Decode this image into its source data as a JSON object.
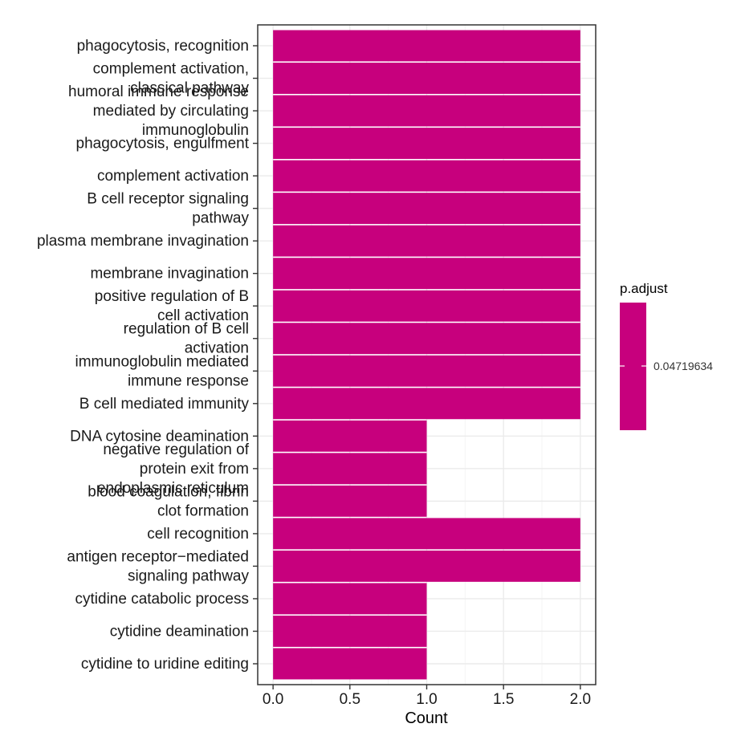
{
  "chart_data": {
    "type": "bar",
    "orientation": "horizontal",
    "categories": [
      "phagocytosis, recognition",
      "complement activation,\nclassical pathway",
      "humoral immune response\nmediated by circulating\nimmunoglobulin",
      "phagocytosis, engulfment",
      "complement activation",
      "B cell receptor signaling\npathway",
      "plasma membrane invagination",
      "membrane invagination",
      "positive regulation of B\ncell activation",
      "regulation of B cell\nactivation",
      "immunoglobulin mediated\nimmune response",
      "B cell mediated immunity",
      "DNA cytosine deamination",
      "negative regulation of\nprotein exit from\nendoplasmic reticulum",
      "blood coagulation, fibrin\nclot formation",
      "cell recognition",
      "antigen receptor−mediated\nsignaling pathway",
      "cytidine catabolic process",
      "cytidine deamination",
      "cytidine to uridine editing"
    ],
    "values": [
      2,
      2,
      2,
      2,
      2,
      2,
      2,
      2,
      2,
      2,
      2,
      2,
      1,
      1,
      1,
      2,
      2,
      1,
      1,
      1
    ],
    "xlabel": "Count",
    "ylabel": "",
    "xlim": [
      -0.1,
      2.1
    ],
    "xticks": [
      0.0,
      0.5,
      1.0,
      1.5,
      2.0
    ],
    "xtick_labels": [
      "0.0",
      "0.5",
      "1.0",
      "1.5",
      "2.0"
    ],
    "grid": true,
    "bar_color": "#C7007D",
    "legend": {
      "title": "p.adjust",
      "label": "0.04719634",
      "placement": "right",
      "color": "#C7007D"
    }
  }
}
